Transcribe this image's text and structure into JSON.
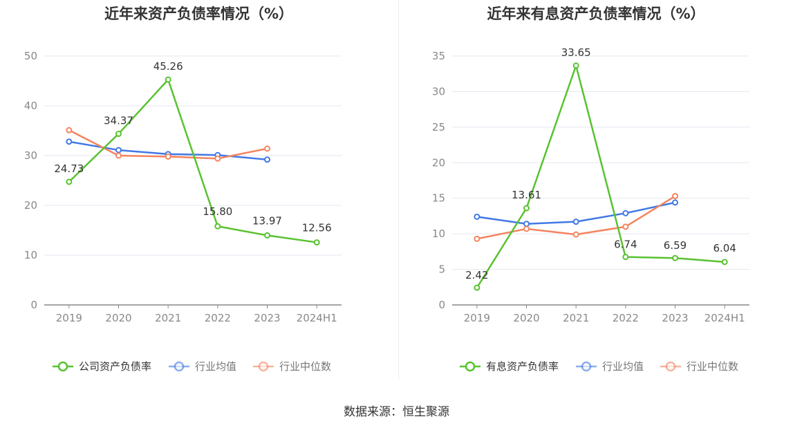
{
  "source_text": "数据来源：恒生聚源",
  "colors": {
    "company": "#58c22f",
    "industry_avg": "#4179e5",
    "industry_median": "#f4845f",
    "grid": "#e3e7f0",
    "axis": "#888888",
    "tick_text": "#888888",
    "label_text": "#333333"
  },
  "chart_data": [
    {
      "type": "line",
      "title": "近年来资产负债率情况（%）",
      "categories": [
        "2019",
        "2020",
        "2021",
        "2022",
        "2023",
        "2024H1"
      ],
      "yticks": [
        "0",
        "10",
        "20",
        "30",
        "40",
        "50"
      ],
      "ylim": [
        0,
        50
      ],
      "grid": true,
      "legend_position": "bottom",
      "series": [
        {
          "name": "公司资产负债率",
          "color_key": "company",
          "values": [
            24.73,
            34.37,
            45.26,
            15.8,
            13.97,
            12.56
          ],
          "labels": [
            "24.73",
            "34.37",
            "45.26",
            "15.80",
            "13.97",
            "12.56"
          ]
        },
        {
          "name": "行业均值",
          "color_key": "industry_avg",
          "values": [
            32.8,
            31.1,
            30.3,
            30.1,
            29.2,
            null
          ]
        },
        {
          "name": "行业中位数",
          "color_key": "industry_median",
          "values": [
            35.1,
            30.0,
            29.8,
            29.4,
            31.4,
            null
          ]
        }
      ]
    },
    {
      "type": "line",
      "title": "近年来有息资产负债率情况（%）",
      "categories": [
        "2019",
        "2020",
        "2021",
        "2022",
        "2023",
        "2024H1"
      ],
      "yticks": [
        "0",
        "5",
        "10",
        "15",
        "20",
        "25",
        "30",
        "35"
      ],
      "ylim": [
        0,
        35
      ],
      "grid": true,
      "legend_position": "bottom",
      "series": [
        {
          "name": "有息资产负债率",
          "color_key": "company",
          "values": [
            2.42,
            13.61,
            33.65,
            6.74,
            6.59,
            6.04
          ],
          "labels": [
            "2.42",
            "13.61",
            "33.65",
            "6.74",
            "6.59",
            "6.04"
          ]
        },
        {
          "name": "行业均值",
          "color_key": "industry_avg",
          "values": [
            12.4,
            11.4,
            11.7,
            12.9,
            14.4,
            null
          ]
        },
        {
          "name": "行业中位数",
          "color_key": "industry_median",
          "values": [
            9.3,
            10.7,
            9.9,
            11.0,
            15.3,
            null
          ]
        }
      ]
    }
  ]
}
